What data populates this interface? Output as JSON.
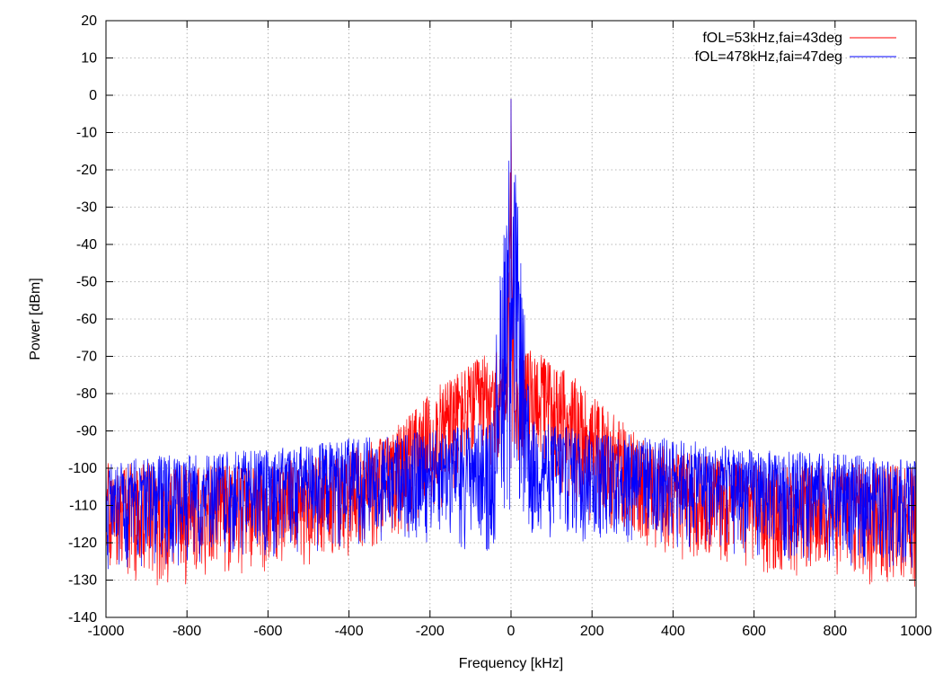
{
  "chart_data": {
    "type": "line",
    "title": "",
    "xlabel": "Frequency [kHz]",
    "ylabel": "Power [dBm]",
    "xlim": [
      -1000,
      1000
    ],
    "ylim": [
      -140,
      20
    ],
    "x_ticks": [
      -1000,
      -800,
      -600,
      -400,
      -200,
      0,
      200,
      400,
      600,
      800,
      1000
    ],
    "y_ticks": [
      20,
      10,
      0,
      -10,
      -20,
      -30,
      -40,
      -50,
      -60,
      -70,
      -80,
      -90,
      -100,
      -110,
      -120,
      -130,
      -140
    ],
    "grid": true,
    "legend_position": "top-right",
    "series": [
      {
        "name": "fOL=53kHz,fai=43deg",
        "color": "#ff0000",
        "envelope": {
          "x": [
            -1000,
            -800,
            -600,
            -400,
            -300,
            -200,
            -150,
            -100,
            -50,
            -10,
            0,
            10,
            50,
            100,
            150,
            200,
            300,
            400,
            600,
            800,
            1000
          ],
          "upper": [
            -98,
            -99,
            -99,
            -95,
            -90,
            -80,
            -75,
            -72,
            -68,
            -70,
            -1,
            -70,
            -68,
            -71,
            -75,
            -80,
            -90,
            -95,
            -99,
            -99,
            -98
          ],
          "lower": [
            -132,
            -132,
            -128,
            -124,
            -121,
            -115,
            -110,
            -104,
            -100,
            -98,
            -95,
            -98,
            -100,
            -104,
            -110,
            -115,
            -121,
            -124,
            -128,
            -132,
            -132
          ]
        }
      },
      {
        "name": "fOL=478kHz,fai=47deg",
        "color": "#0000ff",
        "envelope": {
          "x": [
            -1000,
            -800,
            -600,
            -400,
            -300,
            -200,
            -100,
            -50,
            0,
            50,
            100,
            200,
            300,
            400,
            600,
            800,
            1000
          ],
          "upper": [
            -98,
            -96,
            -95,
            -92,
            -91,
            -90,
            -88,
            -87,
            -1,
            -87,
            -88,
            -90,
            -91,
            -92,
            -95,
            -96,
            -98
          ],
          "lower": [
            -128,
            -126,
            -124,
            -122,
            -120,
            -120,
            -122,
            -125,
            -115,
            -125,
            -122,
            -120,
            -120,
            -122,
            -124,
            -126,
            -128
          ]
        }
      }
    ]
  }
}
